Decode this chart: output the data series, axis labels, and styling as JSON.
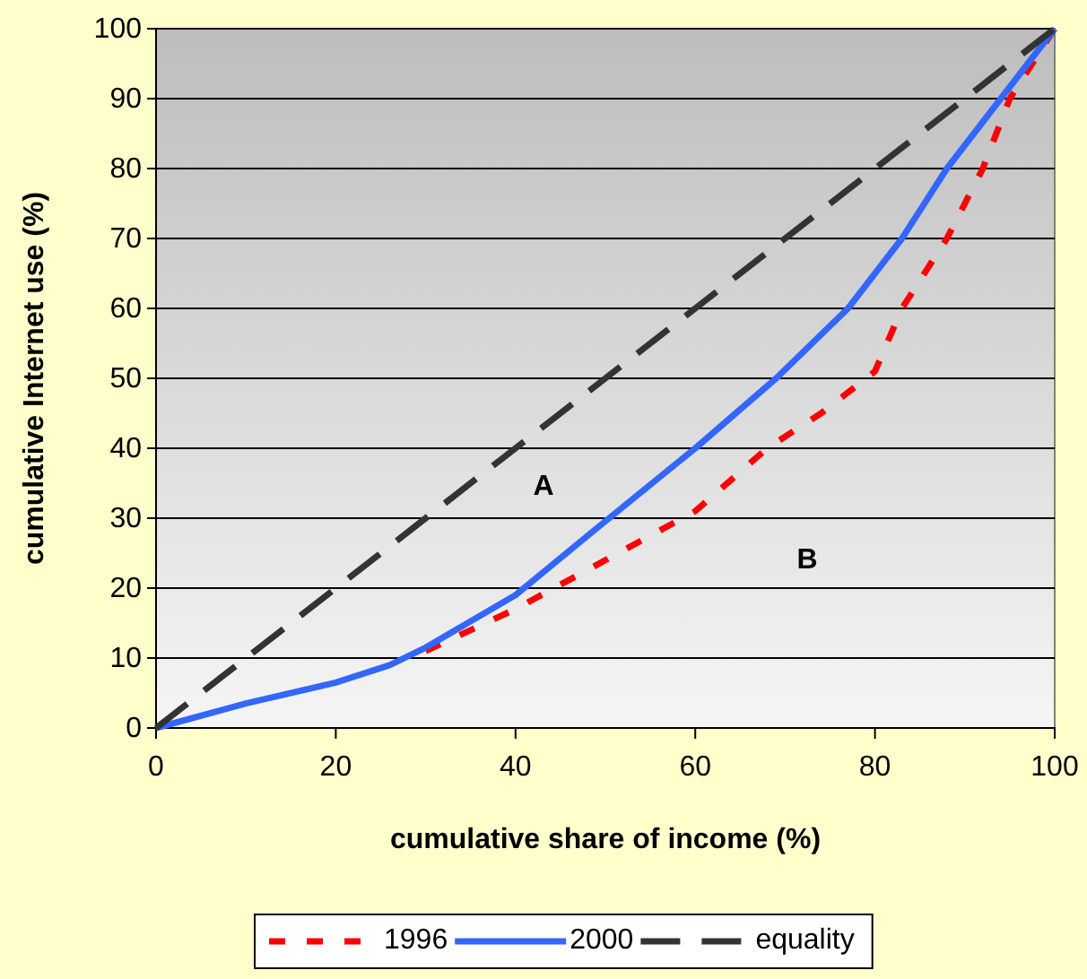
{
  "chart_data": {
    "type": "line",
    "xlabel": "cumulative share of income (%)",
    "ylabel": "cumulative Internet use (%)",
    "xlim": [
      0,
      100
    ],
    "xticks": [
      0,
      20,
      40,
      60,
      80,
      100
    ],
    "ylim": [
      0,
      100
    ],
    "yticks": [
      0,
      10,
      20,
      30,
      40,
      50,
      60,
      70,
      80,
      90,
      100
    ],
    "grid": "y",
    "legend": "bottom",
    "marker": "none",
    "series": [
      {
        "name": "1996",
        "color": "#ff0000",
        "line_style": "dotted",
        "x": [
          30,
          40,
          45,
          50,
          60,
          68,
          74,
          80,
          83,
          88,
          92,
          95,
          100
        ],
        "values": [
          11,
          17,
          20.5,
          24,
          31,
          40,
          45,
          51,
          60,
          70,
          80,
          90,
          100
        ]
      },
      {
        "name": "2000",
        "color": "#3366ff",
        "line_style": "solid",
        "x": [
          0,
          10,
          20,
          26,
          30,
          40,
          48.5,
          60,
          69,
          77,
          83,
          88,
          94,
          100
        ],
        "values": [
          0,
          3.5,
          6.5,
          9,
          11.5,
          19,
          28,
          40,
          50,
          60,
          70,
          80,
          90,
          100
        ]
      },
      {
        "name": "equality",
        "color": "#333333",
        "line_style": "dashed",
        "x": [
          0,
          100
        ],
        "values": [
          0,
          100
        ]
      }
    ],
    "annotations": [
      "A",
      "B"
    ]
  }
}
